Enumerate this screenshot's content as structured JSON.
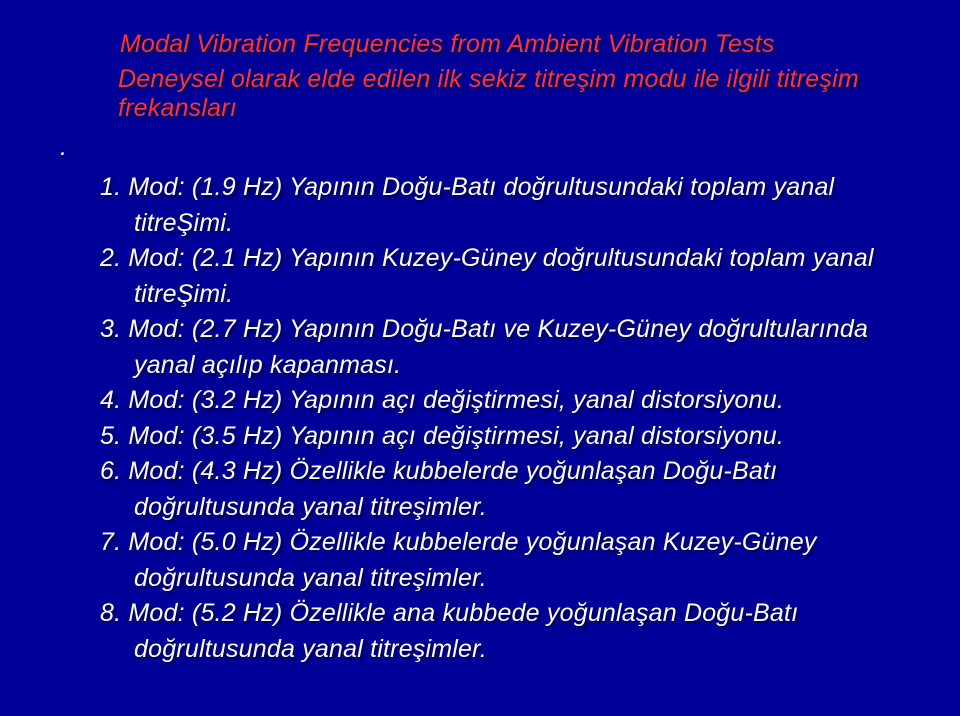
{
  "slide": {
    "background_color": "#000099",
    "title_color": "#ff3333",
    "body_color": "#ffffff",
    "font_family": "Arial",
    "title_fontsize_pt": 19,
    "body_fontsize_pt": 19,
    "italic": true,
    "text_shadow": "2px 2px 3px rgba(0,0,0,0.6)",
    "title": "Modal Vibration Frequencies from Ambient Vibration Tests",
    "subtitle": "Deneysel olarak elde edilen ilk sekiz titreşim modu ile ilgili titreşim frekansları",
    "dot": ".",
    "items": [
      "1. Mod: (1.9 Hz) Yapının Doğu-Batı doğrultusundaki toplam yanal titreŞimi.",
      "2. Mod: (2.1 Hz) Yapının Kuzey-Güney doğrultusundaki toplam yanal titreŞimi.",
      "3. Mod: (2.7 Hz) Yapının Doğu-Batı ve Kuzey-Güney doğrultularında yanal açılıp kapanması.",
      "4. Mod: (3.2 Hz) Yapının açı değiştirmesi, yanal distorsiyonu.",
      "5. Mod: (3.5 Hz) Yapının açı değiştirmesi, yanal distorsiyonu.",
      "6. Mod: (4.3 Hz) Özellikle kubbelerde yoğunlaşan Doğu-Batı doğrultusunda yanal titreşimler.",
      "7. Mod: (5.0 Hz) Özellikle kubbelerde yoğunlaşan Kuzey-Güney doğrultusunda yanal titreşimler.",
      "8. Mod: (5.2 Hz) Özellikle ana kubbede yoğunlaşan Doğu-Batı doğrultusunda yanal titreşimler."
    ]
  }
}
